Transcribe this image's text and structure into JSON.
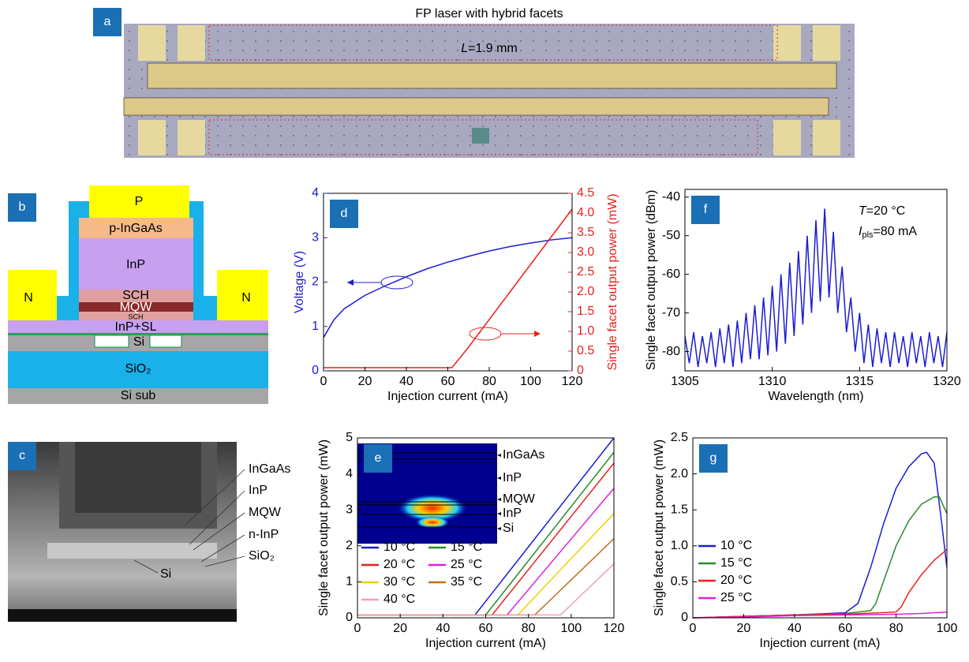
{
  "panel_a": {
    "label": "a",
    "title": "FP laser with hybrid facets",
    "length_symbol": "L",
    "length_text": "=1.9 mm"
  },
  "panel_b": {
    "label": "b",
    "p": "P",
    "p_ingaas": "p-InGaAs",
    "inp": "InP",
    "sch": "SCH",
    "mqw": "MQW",
    "sch_small": "SCH",
    "inp_sl": "InP+SL",
    "n_left": "N",
    "n_right": "N",
    "si": "Si",
    "sio2": "SiO₂",
    "si_sub": "Si sub"
  },
  "panel_c": {
    "label": "c",
    "ingaas": "InGaAs",
    "inp": "InP",
    "mqw": "MQW",
    "n_inp": "n-InP",
    "sio2": "SiO₂",
    "si": "Si"
  },
  "chart_data": [
    {
      "type": "line",
      "panel": "d",
      "xlabel": "Injection current (mA)",
      "ylabel": "Voltage (V)",
      "y2label": "Single facet output power (mW)",
      "xlim": [
        0,
        120
      ],
      "xticks": [
        0,
        20,
        40,
        60,
        80,
        100,
        120
      ],
      "ylim": [
        0,
        4
      ],
      "yticks": [
        0,
        1,
        2,
        3,
        4
      ],
      "y2lim": [
        0,
        4.5
      ],
      "y2ticks": [
        0,
        0.5,
        {
          "value": 1,
          "label": "1.0"
        },
        1.5,
        {
          "value": 2,
          "label": "2.0"
        },
        2.5,
        {
          "value": 3,
          "label": "3.0"
        },
        3.5,
        {
          "value": 4,
          "label": "4.0"
        },
        4.5
      ],
      "y_color": "#1c1cd4",
      "y2_color": "#e8211f",
      "series": [
        {
          "color": "#1c1cd4",
          "x": [
            0,
            5,
            10,
            20,
            30,
            40,
            50,
            60,
            70,
            80,
            90,
            100,
            110,
            120
          ],
          "values": [
            0.75,
            1.15,
            1.4,
            1.7,
            1.92,
            2.12,
            2.3,
            2.45,
            2.58,
            2.7,
            2.8,
            2.88,
            2.95,
            3.0
          ]
        },
        {
          "color": "#e8211f",
          "axis": "y2",
          "x": [
            0,
            62,
            70,
            80,
            90,
            100,
            110,
            120
          ],
          "values": [
            0.08,
            0.08,
            0.6,
            1.3,
            2.0,
            2.7,
            3.4,
            4.1
          ]
        }
      ]
    },
    {
      "type": "line",
      "panel": "f",
      "xlabel": "Wavelength (nm)",
      "ylabel": "Single facet output power (dBm)",
      "xlim": [
        1305,
        1320
      ],
      "xticks": [
        1305,
        1310,
        1315,
        1320
      ],
      "ylim": [
        -85,
        -38
      ],
      "yticks": [
        -80,
        -70,
        -60,
        -50,
        -40
      ],
      "annotation": {
        "t_symbol": "T",
        "t_text": "=20 °C",
        "i_symbol": "I",
        "i_sub": "pls",
        "i_text": "=80 mA"
      },
      "x": [
        1305,
        1305.25,
        1305.5,
        1305.75,
        1306,
        1306.25,
        1306.5,
        1306.75,
        1307,
        1307.25,
        1307.5,
        1307.75,
        1308,
        1308.25,
        1308.5,
        1308.75,
        1309,
        1309.25,
        1309.5,
        1309.75,
        1310,
        1310.25,
        1310.5,
        1310.75,
        1311,
        1311.25,
        1311.5,
        1311.75,
        1312,
        1312.25,
        1312.5,
        1312.75,
        1313,
        1313.25,
        1313.5,
        1313.75,
        1314,
        1314.25,
        1314.5,
        1314.75,
        1315,
        1315.25,
        1315.5,
        1315.75,
        1316,
        1316.25,
        1316.5,
        1316.75,
        1317,
        1317.25,
        1317.5,
        1317.75,
        1318,
        1318.25,
        1318.5,
        1318.75,
        1319,
        1319.25,
        1319.5,
        1319.75,
        1320
      ],
      "series": [
        {
          "color": "#1c1cd4",
          "values": [
            -76,
            -83,
            -75,
            -84,
            -76,
            -83,
            -75,
            -84,
            -74,
            -83,
            -73,
            -84,
            -72,
            -83,
            -70,
            -82,
            -68,
            -82,
            -66,
            -81,
            -63,
            -80,
            -60,
            -78,
            -57,
            -76,
            -54,
            -73,
            -50,
            -70,
            -46,
            -67,
            -43,
            -66,
            -49,
            -70,
            -58,
            -75,
            -66,
            -80,
            -70,
            -83,
            -73,
            -84,
            -74,
            -83,
            -75,
            -84,
            -75,
            -83,
            -76,
            -84,
            -75,
            -83,
            -76,
            -84,
            -75,
            -83,
            -76,
            -84,
            -75
          ]
        }
      ]
    },
    {
      "type": "line",
      "panel": "e",
      "xlabel": "Injection current (mA)",
      "ylabel": "Single facet output power (mW)",
      "xlim": [
        0,
        120
      ],
      "xticks": [
        0,
        20,
        40,
        60,
        80,
        100,
        120
      ],
      "ylim": [
        0,
        5
      ],
      "yticks": [
        0,
        1,
        2,
        3,
        4,
        5
      ],
      "legend": "lower left",
      "inset_labels": [
        "InGaAs",
        "InP",
        "MQW",
        "InP",
        "Si"
      ],
      "series": [
        {
          "name": "10 °C",
          "color": "#1c1cd4",
          "x": [
            0,
            55,
            120
          ],
          "values": [
            0.08,
            0.08,
            5.0
          ]
        },
        {
          "name": "15 °C",
          "color": "#2a8a2a",
          "x": [
            0,
            60,
            120
          ],
          "values": [
            0.08,
            0.08,
            4.6
          ]
        },
        {
          "name": "20 °C",
          "color": "#e8211f",
          "x": [
            0,
            63,
            120
          ],
          "values": [
            0.08,
            0.08,
            4.3
          ]
        },
        {
          "name": "25 °C",
          "color": "#e020e0",
          "x": [
            0,
            70,
            120
          ],
          "values": [
            0.08,
            0.08,
            3.6
          ]
        },
        {
          "name": "30 °C",
          "color": "#f0d000",
          "x": [
            0,
            75,
            120
          ],
          "values": [
            0.08,
            0.08,
            2.9
          ]
        },
        {
          "name": "35 °C",
          "color": "#c07020",
          "x": [
            0,
            83,
            120
          ],
          "values": [
            0.08,
            0.08,
            2.2
          ]
        },
        {
          "name": "40 °C",
          "color": "#f0a0b8",
          "x": [
            0,
            95,
            120
          ],
          "values": [
            0.08,
            0.08,
            1.5
          ]
        }
      ]
    },
    {
      "type": "line",
      "panel": "g",
      "xlabel": "Injection current (mA)",
      "ylabel": "Single facet output power (mW)",
      "xlim": [
        0,
        100
      ],
      "xticks": [
        0,
        20,
        40,
        60,
        80,
        100
      ],
      "ylim": [
        0,
        2.5
      ],
      "yticks": [
        0,
        0.5,
        {
          "value": 1,
          "label": "1.0"
        },
        1.5,
        {
          "value": 2,
          "label": "2.0"
        },
        2.5
      ],
      "legend": "lower left",
      "series": [
        {
          "name": "10 °C",
          "color": "#1c1cd4",
          "x": [
            0,
            20,
            40,
            60,
            65,
            70,
            75,
            80,
            85,
            90,
            92,
            95,
            98,
            100
          ],
          "values": [
            0,
            0.02,
            0.04,
            0.07,
            0.2,
            0.7,
            1.3,
            1.8,
            2.1,
            2.28,
            2.3,
            2.15,
            1.3,
            0.7
          ]
        },
        {
          "name": "15 °C",
          "color": "#2a8a2a",
          "x": [
            0,
            20,
            40,
            60,
            70,
            72,
            75,
            80,
            85,
            90,
            95,
            97,
            100
          ],
          "values": [
            0,
            0.02,
            0.04,
            0.06,
            0.1,
            0.2,
            0.5,
            1.0,
            1.35,
            1.58,
            1.68,
            1.68,
            1.45
          ]
        },
        {
          "name": "20 °C",
          "color": "#e8211f",
          "x": [
            0,
            20,
            40,
            60,
            80,
            82,
            85,
            90,
            95,
            100
          ],
          "values": [
            0,
            0.02,
            0.04,
            0.05,
            0.08,
            0.15,
            0.35,
            0.6,
            0.8,
            0.95
          ]
        },
        {
          "name": "25 °C",
          "color": "#e020e0",
          "x": [
            0,
            20,
            40,
            60,
            80,
            90,
            100
          ],
          "values": [
            0,
            0.01,
            0.03,
            0.04,
            0.05,
            0.06,
            0.08
          ]
        }
      ]
    }
  ]
}
